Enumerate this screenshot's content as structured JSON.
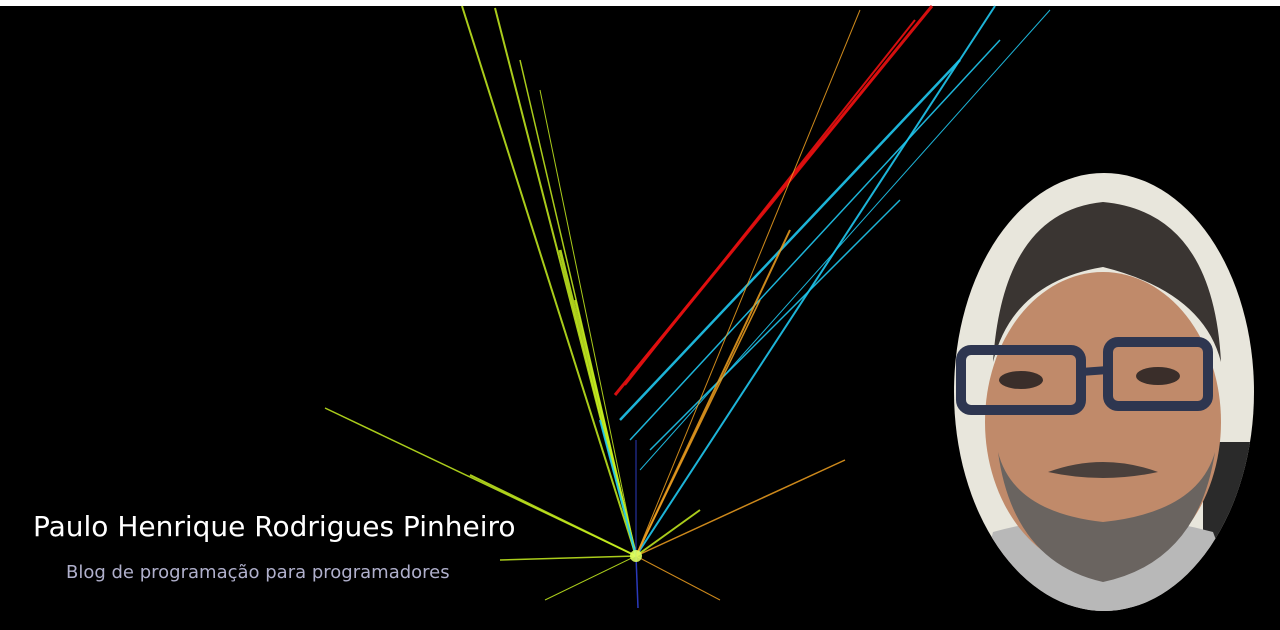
{
  "site": {
    "title": "Paulo Henrique Rodrigues Pinheiro",
    "tagline": "Blog de programação para programadores"
  },
  "colors": {
    "background": "#000000",
    "title_text": "#ffffff",
    "tagline_text": "#b0b0cc",
    "ray_red": "#e01010",
    "ray_cyan": "#20c8f0",
    "ray_yellow_green": "#c8f020",
    "ray_orange": "#f0a020",
    "ray_blue": "#3040d0"
  },
  "icons": {
    "background_art": "particle-collision-burst",
    "avatar": "author-portrait"
  }
}
